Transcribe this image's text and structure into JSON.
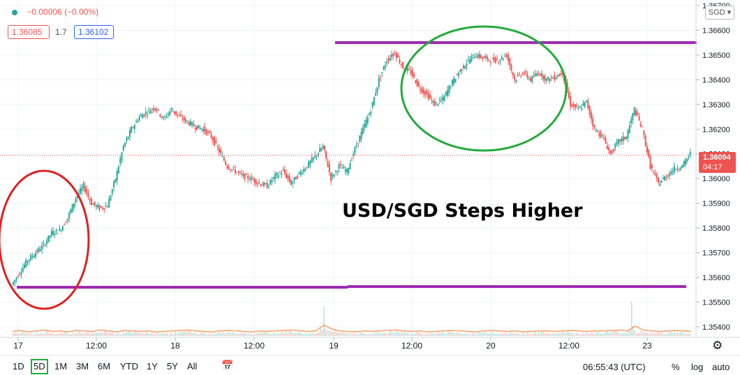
{
  "header": {
    "change": "−0.00006 (−0.00%)",
    "bid": "1.36085",
    "spread": "1.7",
    "ask": "1.36102",
    "currency": "SGD"
  },
  "current_price": {
    "price": "1.36094",
    "countdown": "04:17"
  },
  "annotation": "USD/SGD Steps Higher",
  "bottom_bar": {
    "timeframes": [
      "1D",
      "5D",
      "1M",
      "3M",
      "6M",
      "YTD",
      "1Y",
      "5Y",
      "All"
    ],
    "active": "5D",
    "clock": "06:55:43 (UTC)",
    "percent": "%",
    "log": "log",
    "auto": "auto"
  },
  "colors": {
    "up": "#26a69a",
    "down": "#ef5350",
    "resistance": "#9c27b0",
    "circle_red": "#e02020",
    "circle_green": "#22aa3a"
  },
  "chart_data": {
    "type": "line",
    "title": "",
    "xlabel": "",
    "ylabel": "",
    "x_ticks": [
      "17",
      "12:00",
      "18",
      "12:00",
      "19",
      "12:00",
      "20",
      "12:00",
      "23"
    ],
    "y_ticks": [
      "1.36700",
      "1.36600",
      "1.36500",
      "1.36400",
      "1.36300",
      "1.36200",
      "1.36100",
      "1.36000",
      "1.35900",
      "1.35800",
      "1.35700",
      "1.35600",
      "1.35500",
      "1.35400"
    ],
    "ylim": [
      1.3538,
      1.3671
    ],
    "series": [
      {
        "values": [
          1.3557,
          1.3562,
          1.3567,
          1.357,
          1.3573,
          1.3578,
          1.3579,
          1.3584,
          1.3592,
          1.3597,
          1.359,
          1.3588,
          1.3589,
          1.36,
          1.3613,
          1.362,
          1.3625,
          1.3627,
          1.3629,
          1.3624,
          1.3628,
          1.3625,
          1.3623,
          1.3621,
          1.362,
          1.3617,
          1.3611,
          1.3605,
          1.3603,
          1.3601,
          1.36,
          1.3598,
          1.3597,
          1.3601,
          1.3603,
          1.3598,
          1.3602,
          1.3605,
          1.3609,
          1.3613,
          1.36,
          1.3605,
          1.3603,
          1.3612,
          1.362,
          1.3628,
          1.364,
          1.3648,
          1.3651,
          1.3645,
          1.3643,
          1.3637,
          1.3634,
          1.363,
          1.3632,
          1.3638,
          1.3643,
          1.3647,
          1.365,
          1.3649,
          1.3648,
          1.3648,
          1.365,
          1.364,
          1.3643,
          1.364,
          1.3643,
          1.364,
          1.3641,
          1.3643,
          1.363,
          1.3628,
          1.3631,
          1.362,
          1.3617,
          1.361,
          1.3615,
          1.3617,
          1.3628,
          1.362,
          1.3605,
          1.3598,
          1.3601,
          1.3604,
          1.3605,
          1.361
        ]
      }
    ],
    "volume_levels": [
      0.25,
      0.35,
      0.2,
      0.3,
      0.4,
      0.25,
      0.3,
      0.2,
      0.35,
      0.3,
      0.25,
      0.4,
      0.3,
      0.2,
      0.35,
      0.3,
      0.25,
      0.3,
      0.2,
      0.25,
      0.3,
      0.35,
      0.4,
      0.3,
      0.25,
      0.2,
      0.3,
      0.35,
      0.3,
      0.25,
      0.2,
      0.3,
      0.25,
      0.3,
      0.35,
      0.4,
      0.3,
      0.25,
      0.3,
      0.9,
      0.5,
      0.3,
      0.25,
      0.2,
      0.3,
      0.25,
      0.3,
      0.35,
      0.4,
      0.3,
      0.25,
      0.3,
      0.2,
      0.25,
      0.3,
      0.35,
      0.3,
      0.25,
      0.2,
      0.3,
      0.35,
      0.3,
      0.25,
      0.3,
      0.2,
      0.25,
      0.3,
      0.3,
      0.25,
      0.3,
      0.35,
      0.3,
      0.25,
      0.3,
      0.3,
      0.35,
      0.4,
      0.3,
      0.8,
      0.4,
      0.3,
      0.25,
      0.3,
      0.35,
      0.3,
      0.25
    ],
    "resistance_levels": [
      1.3655,
      1.3556
    ],
    "grid": true
  }
}
